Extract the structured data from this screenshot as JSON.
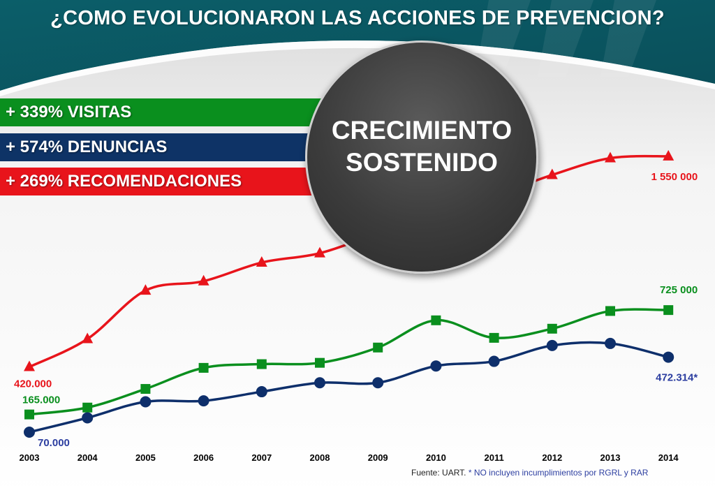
{
  "title": "¿COMO EVOLUCIONARON LAS ACCIONES DE PREVENCION?",
  "stats": {
    "visitas": "+ 339% VISITAS",
    "denuncias": "+ 574% DENUNCIAS",
    "recomendaciones": "+ 269% RECOMENDACIONES"
  },
  "circle": {
    "line1": "CRECIMIENTO",
    "line2": "SOSTENIDO"
  },
  "footnote": {
    "source": "Fuente: UART.",
    "note": " * NO incluyen incumplimientos por  RGRL y RAR"
  },
  "colors": {
    "red": "#e8141b",
    "green": "#0a8f1e",
    "navy": "#0e2f6b",
    "teal": "#0b5e69"
  },
  "chart_data": {
    "type": "line",
    "x": [
      "2003",
      "2004",
      "2005",
      "2006",
      "2007",
      "2008",
      "2009",
      "2010",
      "2011",
      "2012",
      "2013",
      "2014"
    ],
    "series": [
      {
        "key": "recomendaciones",
        "color": "#e8141b",
        "marker": "triangle",
        "values": [
          420000,
          570000,
          830000,
          880000,
          980000,
          1030000,
          1140000,
          1260000,
          1340000,
          1450000,
          1540000,
          1550000
        ],
        "labels": {
          "first": "420.000",
          "last": "1 550 000"
        }
      },
      {
        "key": "visitas",
        "color": "#0a8f1e",
        "marker": "square",
        "values": [
          165000,
          202000,
          302000,
          415000,
          435000,
          442000,
          524000,
          670000,
          576000,
          625000,
          720000,
          725000
        ],
        "labels": {
          "first": "165.000",
          "last": "725 000"
        }
      },
      {
        "key": "denuncias",
        "color": "#0e2f6b",
        "marker": "circle",
        "values": [
          70000,
          147000,
          233000,
          238000,
          287000,
          335000,
          335000,
          425000,
          450000,
          535000,
          546000,
          472314
        ],
        "labels": {
          "first": "70.000",
          "last": "472.314*"
        }
      }
    ]
  }
}
